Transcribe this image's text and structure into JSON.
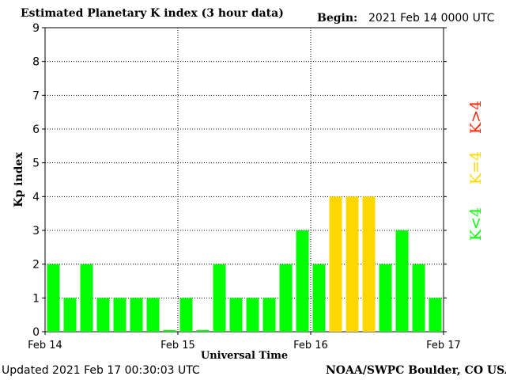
{
  "header": {
    "title": "Estimated Planetary K index (3 hour data)",
    "begin_label": "Begin:",
    "begin_value": "2021 Feb 14 0000 UTC"
  },
  "footer": {
    "updated_label": "Updated",
    "updated_value": "2021 Feb 17 00:30:03 UTC",
    "source": "NOAA/SWPC Boulder, CO USA"
  },
  "chart_data": {
    "type": "bar",
    "title": "Estimated Planetary K index (3 hour data)",
    "xlabel": "Universal Time",
    "ylabel": "Kp index",
    "ylim": [
      0,
      9
    ],
    "yticks": [
      "0",
      "1",
      "2",
      "3",
      "4",
      "5",
      "6",
      "7",
      "8",
      "9"
    ],
    "xticks": [
      "Feb 14",
      "Feb 15",
      "Feb 16",
      "Feb 17"
    ],
    "values": [
      2,
      1,
      2,
      1,
      1,
      1,
      1,
      0.05,
      1,
      0.05,
      2,
      1,
      1,
      1,
      2,
      3,
      2,
      4,
      4,
      4,
      2,
      3,
      2,
      1
    ],
    "colors": {
      "below_4": "#00ff00",
      "equal_4": "#ffd700",
      "above_4": "#ff2200"
    },
    "legend": [
      {
        "label": "K<4",
        "color": "#00ff00"
      },
      {
        "label": "K=4",
        "color": "#ffd700"
      },
      {
        "label": "K>4",
        "color": "#ff2200"
      }
    ],
    "grid": true
  }
}
